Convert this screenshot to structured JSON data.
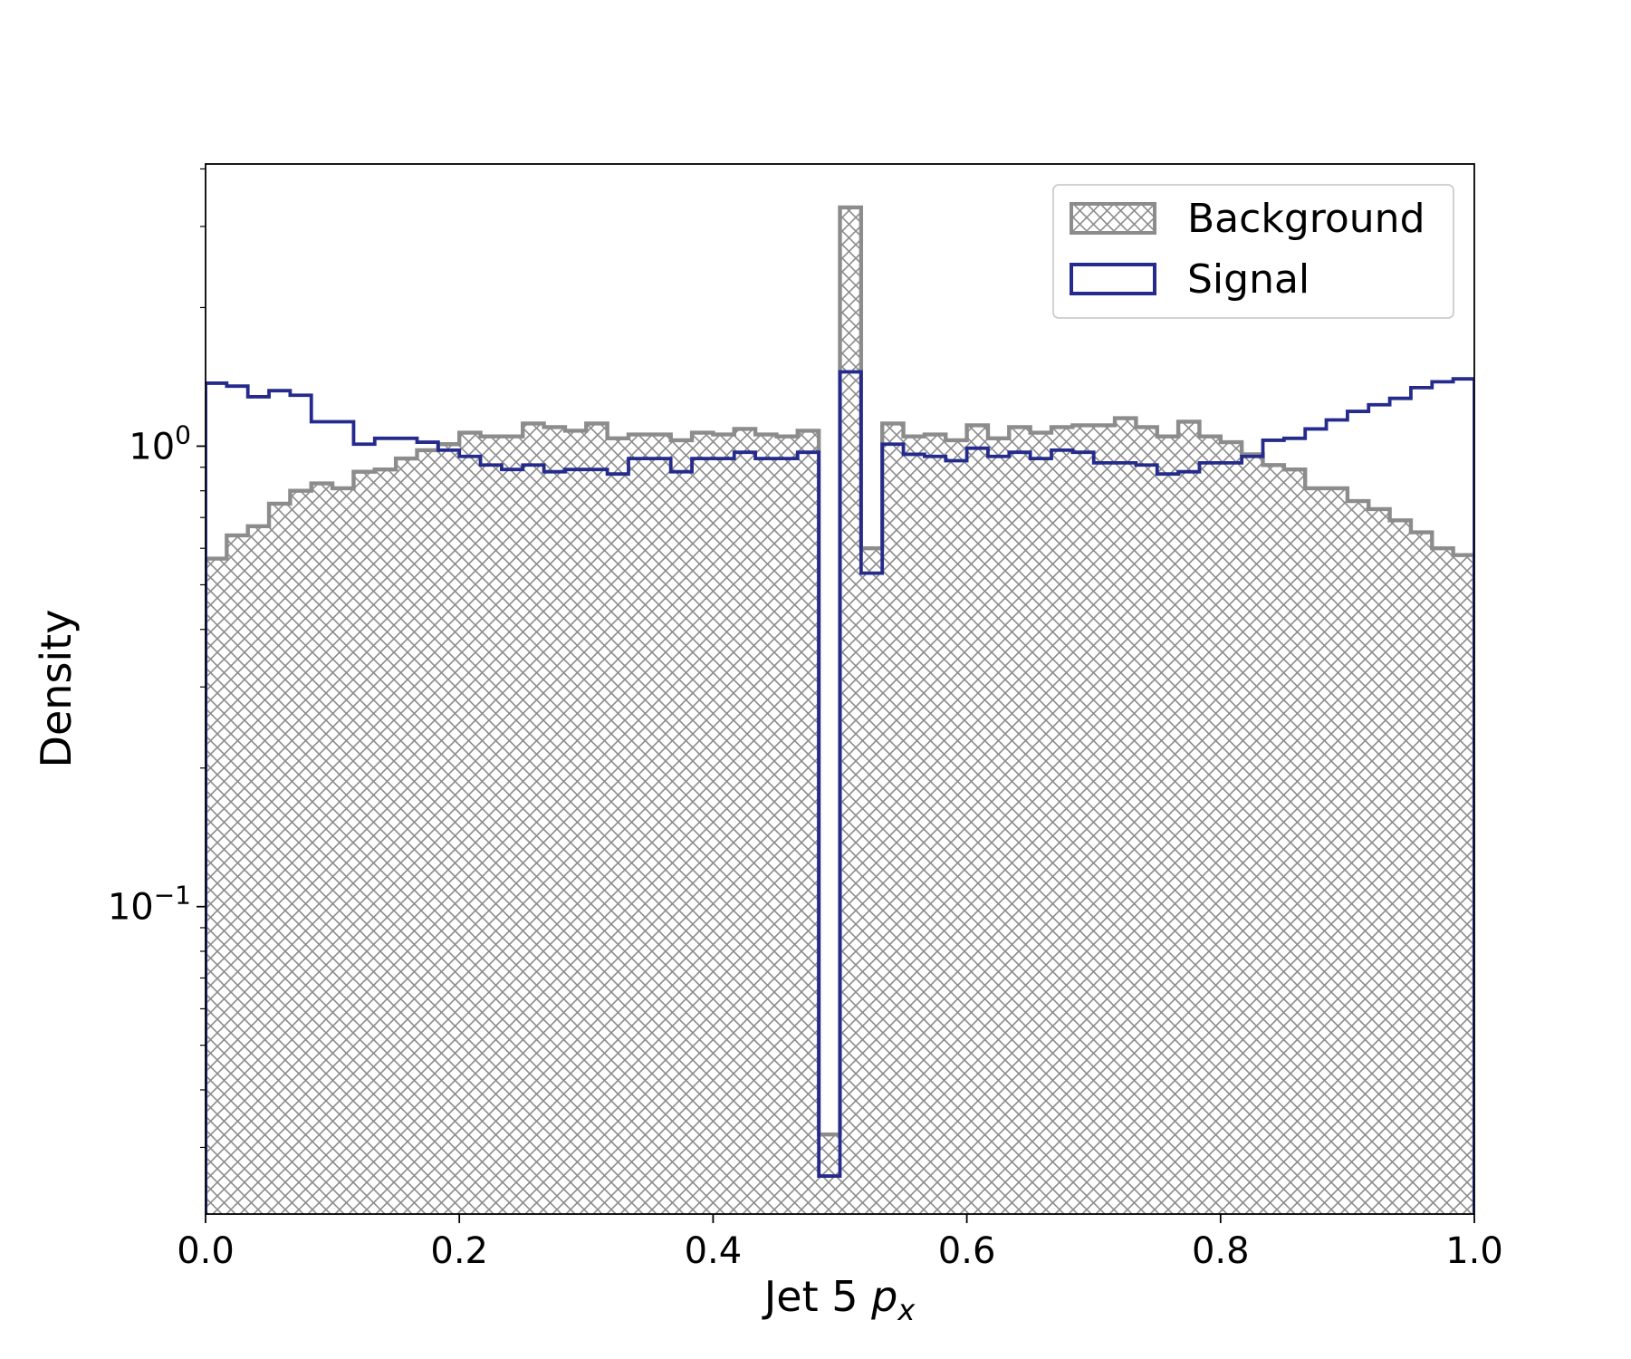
{
  "chart_data": {
    "type": "histogram-step",
    "xlabel": "Jet 5",
    "xlabel_symbol": "p",
    "xlabel_subscript": "x",
    "ylabel": "Density",
    "xlim": [
      0.0,
      1.0
    ],
    "ylim": [
      0.0215,
      4.1
    ],
    "yscale": "log",
    "grid": false,
    "legend_position": "top-right",
    "x_ticks": [
      {
        "value": 0.0,
        "label": "0.0"
      },
      {
        "value": 0.2,
        "label": "0.2"
      },
      {
        "value": 0.4,
        "label": "0.4"
      },
      {
        "value": 0.6,
        "label": "0.6"
      },
      {
        "value": 0.8,
        "label": "0.8"
      },
      {
        "value": 1.0,
        "label": "1.0"
      }
    ],
    "y_ticks": [
      {
        "value": 1.0,
        "base": "10",
        "exponent": "0"
      },
      {
        "value": 0.1,
        "base": "10",
        "exponent": "−1"
      }
    ],
    "bin_edges": [
      0.0,
      0.01667,
      0.03333,
      0.05,
      0.06667,
      0.08333,
      0.1,
      0.11667,
      0.13333,
      0.15,
      0.16667,
      0.18333,
      0.2,
      0.21667,
      0.23333,
      0.25,
      0.26667,
      0.28333,
      0.3,
      0.31667,
      0.33333,
      0.35,
      0.36667,
      0.38333,
      0.4,
      0.41667,
      0.43333,
      0.45,
      0.46667,
      0.48333,
      0.5,
      0.51667,
      0.53333,
      0.55,
      0.56667,
      0.58333,
      0.6,
      0.61667,
      0.63333,
      0.65,
      0.66667,
      0.68333,
      0.7,
      0.71667,
      0.73333,
      0.75,
      0.76667,
      0.78333,
      0.8,
      0.81667,
      0.83333,
      0.85,
      0.86667,
      0.88333,
      0.9,
      0.91667,
      0.93333,
      0.95,
      0.96667,
      0.98333,
      1.0
    ],
    "series": [
      {
        "name": "Background",
        "style": "hatched-step",
        "color": "#8c8c8c",
        "values": [
          0.57,
          0.64,
          0.67,
          0.75,
          0.8,
          0.83,
          0.81,
          0.88,
          0.89,
          0.94,
          0.98,
          1.01,
          1.07,
          1.05,
          1.05,
          1.12,
          1.1,
          1.08,
          1.12,
          1.04,
          1.06,
          1.06,
          1.03,
          1.07,
          1.06,
          1.09,
          1.06,
          1.05,
          1.08,
          0.032,
          3.3,
          0.6,
          1.12,
          1.05,
          1.06,
          1.03,
          1.11,
          1.04,
          1.1,
          1.07,
          1.1,
          1.11,
          1.11,
          1.15,
          1.1,
          1.05,
          1.13,
          1.05,
          1.02,
          0.96,
          0.91,
          0.89,
          0.81,
          0.81,
          0.76,
          0.73,
          0.69,
          0.65,
          0.6,
          0.58
        ]
      },
      {
        "name": "Signal",
        "style": "step",
        "color": "#252b8c",
        "values": [
          1.37,
          1.35,
          1.28,
          1.32,
          1.29,
          1.13,
          1.13,
          1.01,
          1.04,
          1.04,
          1.02,
          0.98,
          0.95,
          0.91,
          0.89,
          0.91,
          0.88,
          0.89,
          0.89,
          0.87,
          0.94,
          0.94,
          0.88,
          0.94,
          0.94,
          0.97,
          0.94,
          0.94,
          0.97,
          0.026,
          1.45,
          0.53,
          1.01,
          0.96,
          0.95,
          0.93,
          0.99,
          0.95,
          0.97,
          0.94,
          0.98,
          0.97,
          0.92,
          0.92,
          0.91,
          0.87,
          0.88,
          0.92,
          0.92,
          0.95,
          1.03,
          1.04,
          1.09,
          1.14,
          1.19,
          1.23,
          1.27,
          1.34,
          1.38,
          1.4
        ]
      }
    ]
  }
}
